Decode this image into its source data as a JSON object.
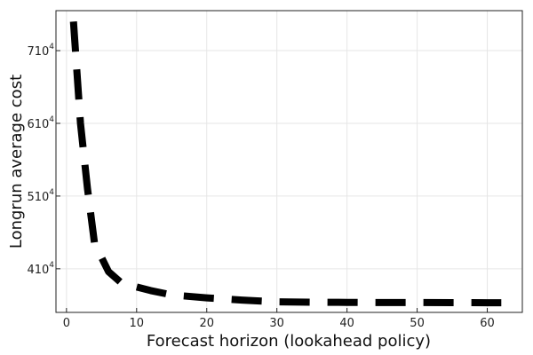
{
  "chart_data": {
    "type": "line",
    "xlabel": "Forecast horizon (lookahead policy)",
    "ylabel": "Longrun average cost",
    "xlim": [
      -1.5,
      65
    ],
    "ylim": [
      34000,
      75500
    ],
    "x_ticks": [
      0,
      10,
      20,
      30,
      40,
      50,
      60
    ],
    "y_ticks": [
      {
        "value": 40000,
        "mantissa": "4",
        "base": "10",
        "exp": "4"
      },
      {
        "value": 50000,
        "mantissa": "5",
        "base": "10",
        "exp": "4"
      },
      {
        "value": 60000,
        "mantissa": "6",
        "base": "10",
        "exp": "4"
      },
      {
        "value": 70000,
        "mantissa": "7",
        "base": "10",
        "exp": "4"
      }
    ],
    "grid": true,
    "series": [
      {
        "line_style": "dashed",
        "color": "#000000",
        "x": [
          1,
          2,
          3,
          4,
          6,
          8,
          10,
          12,
          15,
          20,
          25,
          30,
          35,
          40,
          45,
          50,
          55,
          60,
          62
        ],
        "y": [
          74000,
          60000,
          51000,
          43500,
          39600,
          37900,
          37500,
          37000,
          36400,
          36000,
          35700,
          35450,
          35400,
          35380,
          35360,
          35350,
          35340,
          35330,
          35330
        ]
      }
    ]
  }
}
